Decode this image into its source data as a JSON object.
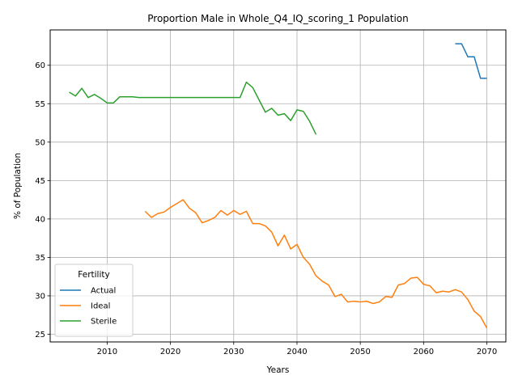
{
  "chart_data": {
    "type": "line",
    "title": "Proportion Male in Whole_Q4_IQ_scoring_1 Population",
    "xlabel": "Years",
    "ylabel": "% of Population",
    "xlim": [
      2001,
      2073
    ],
    "ylim": [
      24,
      64.6
    ],
    "xticks": [
      2010,
      2020,
      2030,
      2040,
      2050,
      2060,
      2070
    ],
    "yticks": [
      25,
      30,
      35,
      40,
      45,
      50,
      55,
      60
    ],
    "grid": true,
    "legend": {
      "title": "Fertility",
      "placement": "lower-left"
    },
    "series": [
      {
        "name": "Actual",
        "color": "#1f77b4",
        "points": [
          [
            2065,
            62.8
          ],
          [
            2066,
            62.8
          ],
          [
            2067,
            61.1
          ],
          [
            2068,
            61.1
          ],
          [
            2069,
            58.3
          ],
          [
            2070,
            58.3
          ]
        ]
      },
      {
        "name": "Ideal",
        "color": "#ff7f0e",
        "points": [
          [
            2016,
            41.0
          ],
          [
            2017,
            40.2
          ],
          [
            2018,
            40.7
          ],
          [
            2019,
            40.9
          ],
          [
            2020,
            41.5
          ],
          [
            2021,
            42.0
          ],
          [
            2022,
            42.5
          ],
          [
            2023,
            41.4
          ],
          [
            2024,
            40.8
          ],
          [
            2025,
            39.5
          ],
          [
            2026,
            39.8
          ],
          [
            2027,
            40.2
          ],
          [
            2028,
            41.1
          ],
          [
            2029,
            40.5
          ],
          [
            2030,
            41.1
          ],
          [
            2031,
            40.6
          ],
          [
            2032,
            41.0
          ],
          [
            2033,
            39.4
          ],
          [
            2034,
            39.4
          ],
          [
            2035,
            39.1
          ],
          [
            2036,
            38.3
          ],
          [
            2037,
            36.5
          ],
          [
            2038,
            37.9
          ],
          [
            2039,
            36.1
          ],
          [
            2040,
            36.7
          ],
          [
            2041,
            35.0
          ],
          [
            2042,
            34.1
          ],
          [
            2043,
            32.6
          ],
          [
            2044,
            31.9
          ],
          [
            2045,
            31.4
          ],
          [
            2046,
            29.9
          ],
          [
            2047,
            30.2
          ],
          [
            2048,
            29.2
          ],
          [
            2049,
            29.3
          ],
          [
            2050,
            29.2
          ],
          [
            2051,
            29.3
          ],
          [
            2052,
            29.0
          ],
          [
            2053,
            29.2
          ],
          [
            2054,
            29.9
          ],
          [
            2055,
            29.8
          ],
          [
            2056,
            31.4
          ],
          [
            2057,
            31.6
          ],
          [
            2058,
            32.3
          ],
          [
            2059,
            32.4
          ],
          [
            2060,
            31.5
          ],
          [
            2061,
            31.3
          ],
          [
            2062,
            30.4
          ],
          [
            2063,
            30.6
          ],
          [
            2064,
            30.5
          ],
          [
            2065,
            30.8
          ],
          [
            2066,
            30.5
          ],
          [
            2067,
            29.5
          ],
          [
            2068,
            28.0
          ],
          [
            2069,
            27.3
          ],
          [
            2070,
            25.8
          ]
        ]
      },
      {
        "name": "Sterile",
        "color": "#2ca02c",
        "points": [
          [
            2004,
            56.5
          ],
          [
            2005,
            56.0
          ],
          [
            2006,
            57.0
          ],
          [
            2007,
            55.8
          ],
          [
            2008,
            56.2
          ],
          [
            2009,
            55.7
          ],
          [
            2010,
            55.1
          ],
          [
            2011,
            55.1
          ],
          [
            2012,
            55.9
          ],
          [
            2013,
            55.9
          ],
          [
            2014,
            55.9
          ],
          [
            2015,
            55.8
          ],
          [
            2016,
            55.8
          ],
          [
            2020,
            55.8
          ],
          [
            2025,
            55.8
          ],
          [
            2031,
            55.8
          ],
          [
            2032,
            57.8
          ],
          [
            2033,
            57.1
          ],
          [
            2034,
            55.5
          ],
          [
            2035,
            53.9
          ],
          [
            2036,
            54.4
          ],
          [
            2037,
            53.5
          ],
          [
            2038,
            53.7
          ],
          [
            2039,
            52.8
          ],
          [
            2040,
            54.2
          ],
          [
            2041,
            54.0
          ],
          [
            2042,
            52.7
          ],
          [
            2043,
            51.0
          ]
        ]
      }
    ]
  }
}
